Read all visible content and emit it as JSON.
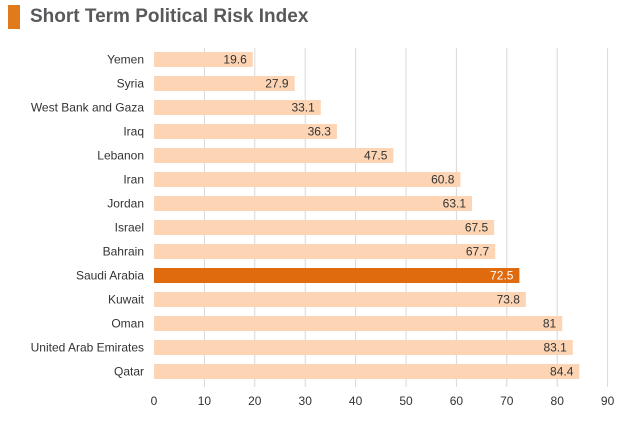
{
  "title": "Short Term Political Risk Index",
  "colors": {
    "accent": "#e07a1b",
    "bar": "#fdd5b4",
    "highlight": "#e06a0e",
    "grid": "#d9d9d9",
    "text": "#333333",
    "highlight_text": "#ffffff"
  },
  "chart_data": {
    "type": "bar",
    "orientation": "horizontal",
    "title": "Short Term Political Risk Index",
    "xlabel": "",
    "ylabel": "",
    "categories": [
      "Yemen",
      "Syria",
      "West Bank and Gaza",
      "Iraq",
      "Lebanon",
      "Iran",
      "Jordan",
      "Israel",
      "Bahrain",
      "Saudi Arabia",
      "Kuwait",
      "Oman",
      "United Arab Emirates",
      "Qatar"
    ],
    "values": [
      19.6,
      27.9,
      33.1,
      36.3,
      47.5,
      60.8,
      63.1,
      67.5,
      67.7,
      72.5,
      73.8,
      81,
      83.1,
      84.4
    ],
    "value_labels": [
      "19.6",
      "27.9",
      "33.1",
      "36.3",
      "47.5",
      "60.8",
      "63.1",
      "67.5",
      "67.7",
      "72.5",
      "73.8",
      "81",
      "83.1",
      "84.4"
    ],
    "highlight": "Saudi Arabia",
    "xlim": [
      0,
      90
    ],
    "xticks": [
      0,
      10,
      20,
      30,
      40,
      50,
      60,
      70,
      80,
      90
    ],
    "grid": "vertical",
    "legend": "none"
  }
}
